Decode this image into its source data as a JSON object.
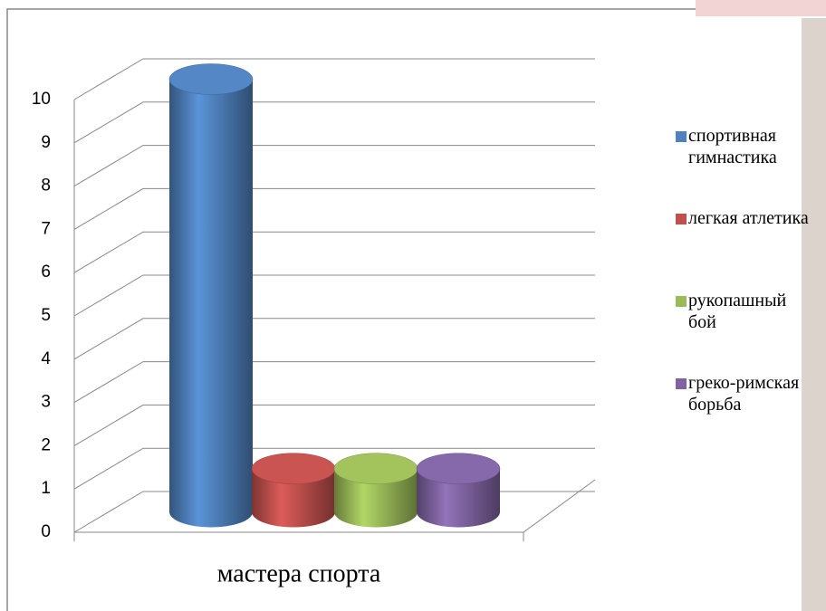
{
  "chart_data": {
    "type": "bar",
    "categories": [
      "мастера спорта"
    ],
    "series": [
      {
        "name": "спортивная гимнастика",
        "color": "#4f81bd",
        "values": [
          10
        ]
      },
      {
        "name": "легкая атлетика",
        "color": "#c0504d",
        "values": [
          1
        ]
      },
      {
        "name": "рукопашный бой",
        "color": "#9bbb59",
        "values": [
          1
        ]
      },
      {
        "name": "греко-римская борьба",
        "color": "#8064a2",
        "values": [
          1
        ]
      }
    ],
    "ylim": [
      0,
      10
    ],
    "yticks": [
      0,
      1,
      2,
      3,
      4,
      5,
      6,
      7,
      8,
      9,
      10
    ],
    "grid": true
  }
}
